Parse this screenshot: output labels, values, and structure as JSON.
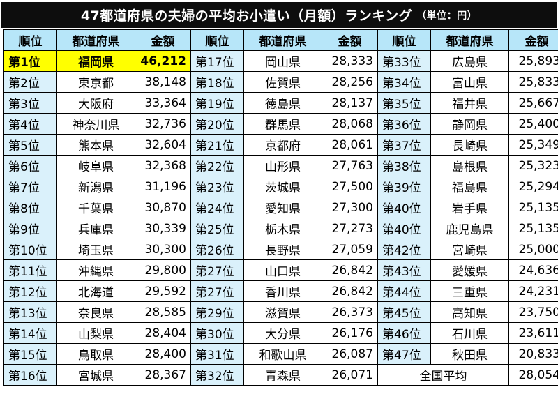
{
  "title": "47都道府県の夫婦の平均お小遣い（月額）ランキング",
  "unit_note": "（単位：円）",
  "headers": [
    "順位",
    "都道府県",
    "金額",
    "順位",
    "都道府県",
    "金額",
    "順位",
    "都道府県",
    "金額"
  ],
  "rows": [
    [
      [
        "第1位",
        "福岡県",
        "46,212"
      ],
      [
        "第17位",
        "岡山県",
        "28,333"
      ],
      [
        "第33位",
        "広島県",
        "25,893"
      ]
    ],
    [
      [
        "第2位",
        "東京都",
        "38,148"
      ],
      [
        "第18位",
        "佐賀県",
        "28,256"
      ],
      [
        "第34位",
        "富山県",
        "25,833"
      ]
    ],
    [
      [
        "第3位",
        "大阪府",
        "33,364"
      ],
      [
        "第19位",
        "徳島県",
        "28,137"
      ],
      [
        "第35位",
        "福井県",
        "25,667"
      ]
    ],
    [
      [
        "第4位",
        "神奈川県",
        "32,736"
      ],
      [
        "第20位",
        "群馬県",
        "28,068"
      ],
      [
        "第36位",
        "静岡県",
        "25,400"
      ]
    ],
    [
      [
        "第5位",
        "熊本県",
        "32,604"
      ],
      [
        "第21位",
        "京都府",
        "28,061"
      ],
      [
        "第37位",
        "長崎県",
        "25,349"
      ]
    ],
    [
      [
        "第6位",
        "岐阜県",
        "32,368"
      ],
      [
        "第22位",
        "山形県",
        "27,763"
      ],
      [
        "第38位",
        "島根県",
        "25,323"
      ]
    ],
    [
      [
        "第7位",
        "新潟県",
        "31,196"
      ],
      [
        "第23位",
        "茨城県",
        "27,500"
      ],
      [
        "第39位",
        "福島県",
        "25,294"
      ]
    ],
    [
      [
        "第8位",
        "千葉県",
        "30,870"
      ],
      [
        "第24位",
        "愛知県",
        "27,300"
      ],
      [
        "第40位",
        "岩手県",
        "25,135"
      ]
    ],
    [
      [
        "第9位",
        "兵庫県",
        "30,339"
      ],
      [
        "第25位",
        "栃木県",
        "27,273"
      ],
      [
        "第40位",
        "鹿児島県",
        "25,135"
      ]
    ],
    [
      [
        "第10位",
        "埼玉県",
        "30,300"
      ],
      [
        "第26位",
        "長野県",
        "27,059"
      ],
      [
        "第42位",
        "宮崎県",
        "25,000"
      ]
    ],
    [
      [
        "第11位",
        "沖縄県",
        "29,800"
      ],
      [
        "第27位",
        "山口県",
        "26,842"
      ],
      [
        "第43位",
        "愛媛県",
        "24,636"
      ]
    ],
    [
      [
        "第12位",
        "北海道",
        "29,592"
      ],
      [
        "第27位",
        "香川県",
        "26,842"
      ],
      [
        "第44位",
        "三重県",
        "24,231"
      ]
    ],
    [
      [
        "第13位",
        "奈良県",
        "28,585"
      ],
      [
        "第29位",
        "滋賀県",
        "26,373"
      ],
      [
        "第45位",
        "高知県",
        "23,750"
      ]
    ],
    [
      [
        "第14位",
        "山梨県",
        "28,404"
      ],
      [
        "第30位",
        "大分県",
        "26,176"
      ],
      [
        "第46位",
        "石川県",
        "23,611"
      ]
    ],
    [
      [
        "第15位",
        "鳥取県",
        "28,400"
      ],
      [
        "第31位",
        "和歌山県",
        "26,087"
      ],
      [
        "第47位",
        "秋田県",
        "20,833"
      ]
    ],
    [
      [
        "第16位",
        "宮城県",
        "28,367"
      ],
      [
        "第32位",
        "青森県",
        "26,071"
      ]
    ]
  ],
  "average": {
    "label": "全国平均",
    "value": "28,054"
  },
  "colors": {
    "title_bg": "#0d0d0d",
    "header_bg": "#b7e6f9",
    "rank_bg": "#daf1fb",
    "highlight_bg": "#ffff00"
  }
}
